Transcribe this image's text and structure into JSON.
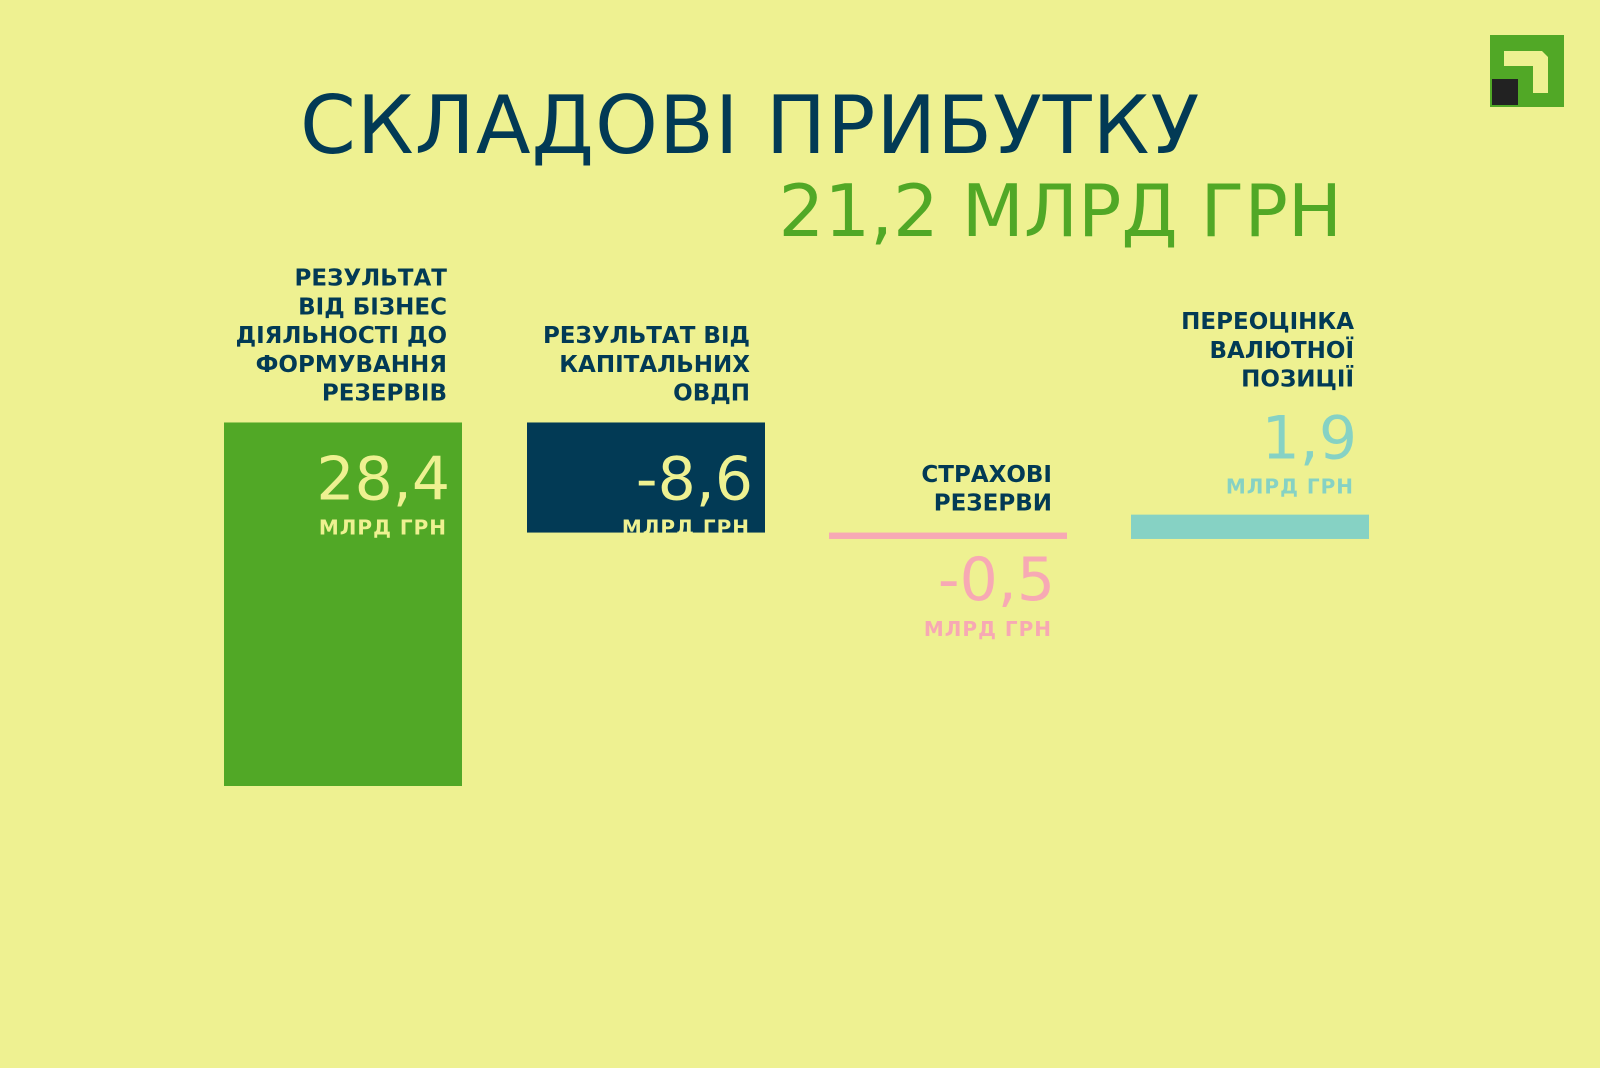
{
  "title": "СКЛАДОВІ ПРИБУТКУ",
  "total": "21,2 МЛРД ГРН",
  "colors": {
    "background": "#eef191",
    "dark": "#023a55",
    "green": "#51a826",
    "pink": "#f7a9b4",
    "teal": "#86d2c4",
    "light": "#eef191"
  },
  "chart_data": {
    "type": "bar",
    "title": "СКЛАДОВІ ПРИБУТКУ",
    "subtitle": "21,2 МЛРД ГРН",
    "unit": "МЛРД ГРН",
    "categories": [
      [
        "РЕЗУЛЬТАТ",
        "ВІД БІЗНЕС",
        "ДІЯЛЬНОСТІ ДО",
        "ФОРМУВАННЯ",
        "РЕЗЕРВІВ"
      ],
      [
        "РЕЗУЛЬТАТ ВІД",
        "КАПІТАЛЬНИХ",
        "ОВДП"
      ],
      [
        "СТРАХОВІ",
        "РЕЗЕРВИ"
      ],
      [
        "ПЕРЕОЦІНКА",
        "ВАЛЮТНОЇ",
        "ПОЗИЦІЇ"
      ]
    ],
    "values": [
      28.4,
      -8.6,
      -0.5,
      1.9
    ],
    "value_labels": [
      "28,4",
      "-8,6",
      "-0,5",
      "1,9"
    ],
    "bar_colors": [
      "#51a826",
      "#023a55",
      "#f7a9b4",
      "#86d2c4"
    ],
    "value_label_colors": [
      "#eef191",
      "#eef191",
      "#f7a9b4",
      "#86d2c4"
    ],
    "grid": false,
    "legend": "none"
  }
}
